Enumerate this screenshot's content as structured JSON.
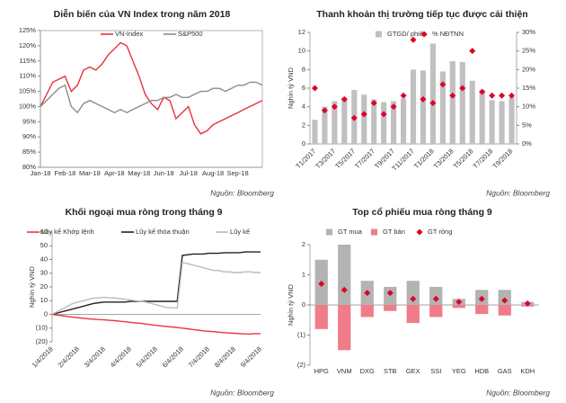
{
  "chart_data": [
    {
      "type": "line",
      "title": "Diễn biến của VN Index trong năm 2018",
      "source": "Nguồn: Bloomberg",
      "categories": [
        "Jan-18",
        null,
        null,
        null,
        "Feb-18",
        null,
        null,
        null,
        "Mar-18",
        null,
        null,
        null,
        "Apr-18",
        null,
        null,
        null,
        "May-18",
        null,
        null,
        null,
        "Jun-18",
        null,
        null,
        null,
        "Jul-18",
        null,
        null,
        null,
        "Aug-18",
        null,
        null,
        null,
        "Sep-18",
        null,
        null,
        null,
        null
      ],
      "series": [
        {
          "name": "VN-Index",
          "color": "#e8323c",
          "values": [
            100,
            104,
            108,
            109,
            110,
            105,
            107,
            112,
            113,
            112,
            114,
            117,
            119,
            121,
            120,
            115,
            110,
            104,
            101,
            99,
            103,
            102,
            96,
            98,
            100,
            94,
            91,
            92,
            94,
            95,
            96,
            97,
            98,
            99,
            100,
            101,
            102
          ]
        },
        {
          "name": "S&P500",
          "color": "#8c8c8c",
          "values": [
            100,
            102,
            104,
            106,
            107,
            100,
            98,
            101,
            102,
            101,
            100,
            99,
            98,
            99,
            98,
            99,
            100,
            101,
            102,
            102,
            103,
            103,
            104,
            103,
            103,
            104,
            105,
            105,
            106,
            106,
            105,
            106,
            107,
            107,
            108,
            108,
            107
          ]
        }
      ],
      "ylim": [
        80,
        125
      ],
      "yticks": [
        {
          "value": 80,
          "label": "80%"
        },
        {
          "value": 85,
          "label": "85%"
        },
        {
          "value": 90,
          "label": "90%"
        },
        {
          "value": 95,
          "label": "95%"
        },
        {
          "value": 100,
          "label": "100%"
        },
        {
          "value": 105,
          "label": "105%"
        },
        {
          "value": 110,
          "label": "110%"
        },
        {
          "value": 115,
          "label": "115%"
        },
        {
          "value": 120,
          "label": "120%"
        },
        {
          "value": 125,
          "label": "125%"
        }
      ]
    },
    {
      "type": "bar",
      "title": "Thanh khoản thị trường tiếp tục được cải thiện",
      "source": "Nguồn: Bloomberg",
      "ylabel": "Nghìn tỷ VND",
      "categories": [
        "T1/2017",
        null,
        "T3/2017",
        null,
        "T5/2017",
        null,
        "T7/2017",
        null,
        "T9/2017",
        null,
        "T11/2017",
        null,
        "T1/2018",
        null,
        "T3/2018",
        null,
        "T5/2018",
        null,
        "T7/2018",
        null,
        "T9/2018"
      ],
      "series": [
        {
          "name": "GTGD/ phiên",
          "color": "#c0c0c0",
          "kind": "bar",
          "values": [
            2.6,
            4.0,
            4.6,
            5.0,
            5.8,
            5.3,
            4.8,
            4.5,
            4.6,
            4.9,
            8.0,
            7.9,
            10.8,
            7.8,
            8.9,
            8.8,
            6.8,
            5.8,
            4.7,
            4.6,
            5.0
          ]
        },
        {
          "name": "% NĐTNN",
          "color": "#e0002a",
          "kind": "marker",
          "axis": "y2",
          "values": [
            15,
            9,
            10,
            12,
            7,
            8,
            11,
            8,
            10,
            13,
            28,
            12,
            11,
            16,
            13,
            15,
            25,
            14,
            13,
            13,
            13
          ]
        }
      ],
      "ylim": [
        0,
        12
      ],
      "yticks": [
        0,
        2,
        4,
        6,
        8,
        10,
        12
      ],
      "y2lim": [
        0,
        30
      ],
      "y2ticks": [
        {
          "value": 0,
          "label": "0%"
        },
        {
          "value": 5,
          "label": "5%"
        },
        {
          "value": 10,
          "label": "10%"
        },
        {
          "value": 15,
          "label": "15%"
        },
        {
          "value": 20,
          "label": "20%"
        },
        {
          "value": 25,
          "label": "25%"
        },
        {
          "value": 30,
          "label": "30%"
        }
      ]
    },
    {
      "type": "line",
      "title": "Khối ngoại mua ròng trong tháng 9",
      "source": "Nguồn: Bloomberg",
      "ylabel": "Nghìn tỷ VND",
      "categories": [
        "1/4/2018",
        null,
        null,
        null,
        null,
        "2/4/2018",
        null,
        null,
        null,
        null,
        "3/4/2018",
        null,
        null,
        null,
        null,
        "4/4/2018",
        null,
        null,
        null,
        null,
        "5/4/2018",
        null,
        null,
        null,
        null,
        "6/4/2018",
        null,
        null,
        null,
        null,
        "7/4/2018",
        null,
        null,
        null,
        null,
        "8/4/2018",
        null,
        null,
        null,
        null,
        "9/4/2018"
      ],
      "series": [
        {
          "name": "Lũy kế Khớp lệnh",
          "color": "#ee3340",
          "values": [
            0,
            -0.5,
            -1,
            -1.5,
            -2,
            -2.4,
            -2.8,
            -3.2,
            -3.5,
            -3.8,
            -4,
            -4.3,
            -4.6,
            -5,
            -5.4,
            -5.8,
            -6.2,
            -6.5,
            -7,
            -7.5,
            -8,
            -8.4,
            -8.8,
            -9.2,
            -9.6,
            -10,
            -10.5,
            -11,
            -11.5,
            -12,
            -12.3,
            -12.6,
            -13,
            -13.3,
            -13.6,
            -13.8,
            -14,
            -14.2,
            -14.3,
            -14,
            -14
          ]
        },
        {
          "name": "Lũy kế thỏa thuận",
          "color": "#222222",
          "values": [
            0,
            1,
            2,
            3,
            4,
            5,
            6,
            7,
            8,
            8.5,
            9,
            9,
            9,
            9,
            9,
            9.5,
            9.5,
            9.5,
            9.5,
            9.5,
            9.5,
            9.5,
            9.5,
            9.5,
            9.5,
            43,
            43.5,
            44,
            44,
            44,
            44.5,
            44.5,
            44.5,
            45,
            45,
            45,
            45,
            45.5,
            45.5,
            45.5,
            45.5
          ]
        },
        {
          "name": "Lũy kế",
          "color": "#bbbbbb",
          "values": [
            0,
            2,
            4,
            6,
            8,
            9,
            10,
            11,
            12,
            12,
            12.5,
            12,
            12,
            11.5,
            11,
            10.5,
            10,
            9.5,
            9,
            8,
            7,
            6,
            5,
            5,
            4.5,
            38,
            37,
            36,
            35,
            34,
            33,
            32,
            32,
            31,
            31,
            30.5,
            30.5,
            31,
            31,
            30.5,
            30.5
          ]
        }
      ],
      "ylim": [
        -20,
        60
      ],
      "yticks": [
        {
          "value": -20,
          "label": "(20)"
        },
        {
          "value": -10,
          "label": "(10)"
        },
        0,
        10,
        20,
        30,
        40,
        50,
        60
      ]
    },
    {
      "type": "bar",
      "title": "Top cổ phiếu mua ròng tháng 9",
      "source": "Nguồn: Bloomberg",
      "ylabel": "Nghìn tỷ VND",
      "categories": [
        "HPG",
        "VNM",
        "DXG",
        "STB",
        "GEX",
        "SSI",
        "YEG",
        "HDB",
        "GAS",
        "KDH"
      ],
      "series": [
        {
          "name": "GT mua",
          "color": "#b3b3b3",
          "kind": "bar",
          "values": [
            1.5,
            2.0,
            0.8,
            0.6,
            0.8,
            0.6,
            0.2,
            0.5,
            0.5,
            0.1
          ]
        },
        {
          "name": "GT bán",
          "color": "#f07c8a",
          "kind": "bar",
          "values": [
            -0.8,
            -1.5,
            -0.4,
            -0.2,
            -0.6,
            -0.4,
            -0.1,
            -0.3,
            -0.35,
            -0.05
          ]
        },
        {
          "name": "GT ròng",
          "color": "#e0002a",
          "kind": "marker",
          "values": [
            0.7,
            0.5,
            0.4,
            0.4,
            0.2,
            0.2,
            0.1,
            0.2,
            0.15,
            0.05
          ]
        }
      ],
      "ylim": [
        -2,
        2
      ],
      "yticks": [
        {
          "value": -2,
          "label": "(2)"
        },
        {
          "value": -1,
          "label": "(1)"
        },
        0,
        1,
        2
      ]
    }
  ]
}
